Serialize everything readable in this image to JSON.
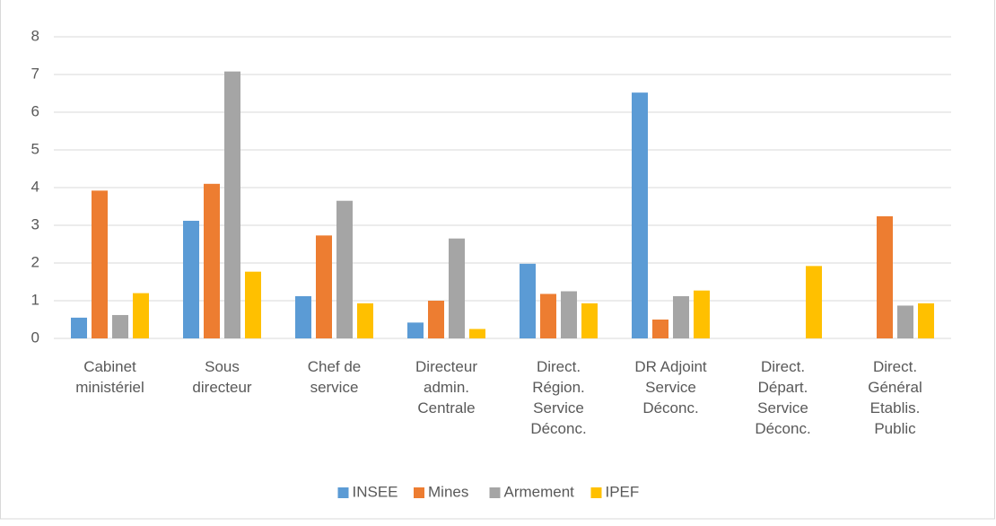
{
  "chart_data": {
    "type": "bar",
    "categories": [
      "Cabinet\nministériel",
      "Sous\ndirecteur",
      "Chef de\nservice",
      "Directeur\nadmin.\nCentrale",
      "Direct.\nRégion.\nService\nDéconc.",
      "DR Adjoint\nService\nDéconc.",
      "Direct.\nDépart.\nService\nDéconc.",
      "Direct.\nGénéral\nEtablis.\nPublic"
    ],
    "series": [
      {
        "name": "INSEE",
        "color": "#5b9bd5",
        "values": [
          0.55,
          3.12,
          1.12,
          0.42,
          1.98,
          6.52,
          null,
          null
        ]
      },
      {
        "name": "Mines",
        "color": "#ed7d31",
        "values": [
          3.92,
          4.1,
          2.73,
          1.0,
          1.18,
          0.5,
          null,
          3.24
        ]
      },
      {
        "name": "Armement",
        "color": "#a5a5a5",
        "values": [
          0.62,
          7.08,
          3.65,
          2.65,
          1.25,
          1.12,
          null,
          0.87
        ]
      },
      {
        "name": "IPEF",
        "color": "#ffc000",
        "values": [
          1.2,
          1.77,
          0.93,
          0.25,
          0.93,
          1.27,
          1.92,
          0.93
        ]
      }
    ],
    "ylim": [
      0,
      8
    ],
    "yticks": [
      0,
      1,
      2,
      3,
      4,
      5,
      6,
      7,
      8
    ],
    "grid": true,
    "legend": "bottom"
  }
}
